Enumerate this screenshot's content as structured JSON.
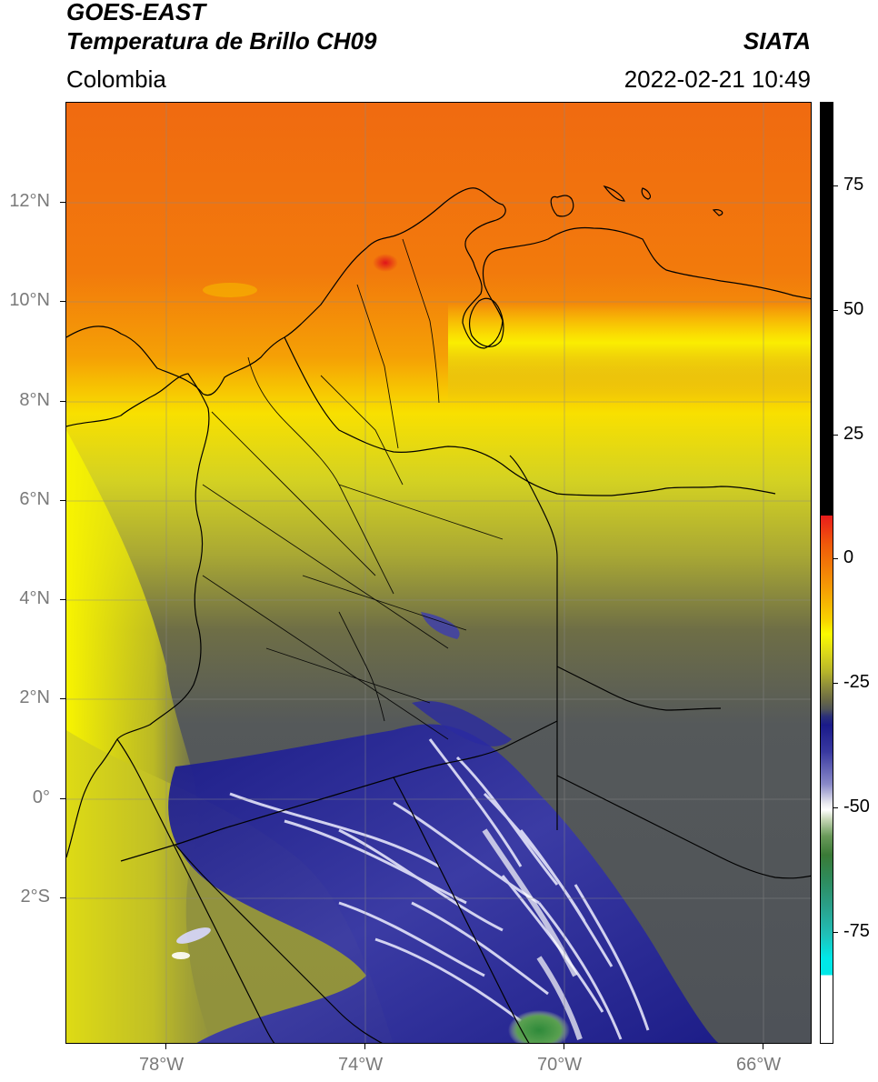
{
  "header": {
    "satellite": "GOES-EAST",
    "product": "Temperatura de Brillo CH09",
    "region": "Colombia",
    "source": "SIATA",
    "datetime": "2022-02-21 10:49"
  },
  "map": {
    "lat_labels": [
      "12°N",
      "10°N",
      "8°N",
      "6°N",
      "4°N",
      "2°N",
      "0°",
      "2°S"
    ],
    "lon_labels": [
      "78°W",
      "74°W",
      "70°W",
      "66°W"
    ],
    "colors": {
      "warm": "#f06a10",
      "orange": "#f59a05",
      "yellow": "#f5f200",
      "olive": "#b9b72a",
      "grey": "#505458",
      "navy": "#1a1a8a",
      "white": "#f0f0ff",
      "green": "#4a9a3a"
    }
  },
  "colorbar": {
    "labels": [
      "75",
      "50",
      "25",
      "0",
      "-25",
      "-50",
      "-75"
    ],
    "colors": {
      "hot": "#000000",
      "red": "#e81c1c",
      "cyan": "#00e8e8"
    }
  }
}
